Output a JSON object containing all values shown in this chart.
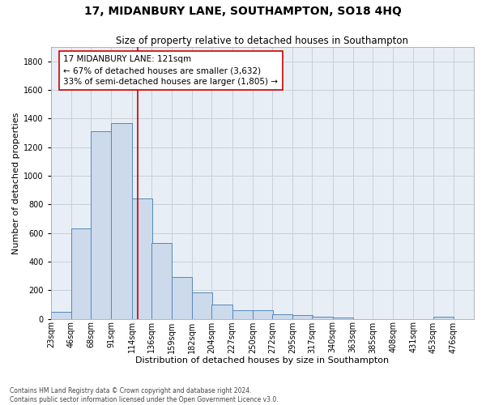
{
  "title": "17, MIDANBURY LANE, SOUTHAMPTON, SO18 4HQ",
  "subtitle": "Size of property relative to detached houses in Southampton",
  "xlabel": "Distribution of detached houses by size in Southampton",
  "ylabel": "Number of detached properties",
  "footnote1": "Contains HM Land Registry data © Crown copyright and database right 2024.",
  "footnote2": "Contains public sector information licensed under the Open Government Licence v3.0.",
  "annotation_line1": "17 MIDANBURY LANE: 121sqm",
  "annotation_line2": "← 67% of detached houses are smaller (3,632)",
  "annotation_line3": "33% of semi-detached houses are larger (1,805) →",
  "categories": [
    "23sqm",
    "46sqm",
    "68sqm",
    "91sqm",
    "114sqm",
    "136sqm",
    "159sqm",
    "182sqm",
    "204sqm",
    "227sqm",
    "250sqm",
    "272sqm",
    "295sqm",
    "317sqm",
    "340sqm",
    "363sqm",
    "385sqm",
    "408sqm",
    "431sqm",
    "453sqm",
    "476sqm"
  ],
  "bin_edges": [
    23,
    46,
    68,
    91,
    114,
    136,
    159,
    182,
    204,
    227,
    250,
    272,
    295,
    317,
    340,
    363,
    385,
    408,
    431,
    453,
    476
  ],
  "bin_width": 23,
  "values": [
    50,
    630,
    1310,
    1370,
    840,
    530,
    290,
    185,
    100,
    60,
    60,
    30,
    25,
    15,
    10,
    0,
    0,
    0,
    0,
    15,
    0
  ],
  "bar_color": "#ccdaeb",
  "bar_edge_color": "#5588bb",
  "vline_color": "#cc0000",
  "vline_x": 121,
  "annotation_box_edge": "#cc0000",
  "ylim": [
    0,
    1900
  ],
  "yticks": [
    0,
    200,
    400,
    600,
    800,
    1000,
    1200,
    1400,
    1600,
    1800
  ],
  "grid_color": "#c8d0d8",
  "plot_bg_color": "#e8eef5",
  "background_color": "#ffffff",
  "title_fontsize": 10,
  "subtitle_fontsize": 8.5,
  "axis_label_fontsize": 8,
  "tick_fontsize": 7,
  "annotation_fontsize": 7.5
}
